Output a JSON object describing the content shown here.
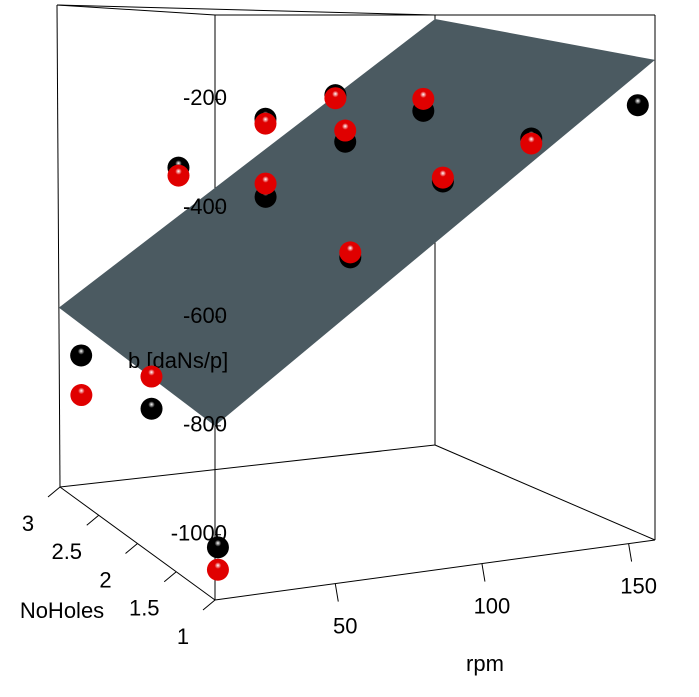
{
  "chart_data": {
    "type": "scatter3d",
    "xlabel": "rpm",
    "ylabel": "NoHoles",
    "zlabel": "b [daNs/p]",
    "xlim": [
      9,
      159
    ],
    "ylim": [
      1,
      3
    ],
    "zlim": [
      -1120,
      -45
    ],
    "xticks": [
      50,
      100,
      150
    ],
    "yticks": [
      1,
      1.5,
      2,
      2.5,
      3
    ],
    "zticks": [
      -200,
      -400,
      -600,
      -800,
      -1000
    ],
    "x": [
      10,
      10,
      10,
      50,
      50,
      50,
      100,
      100,
      100,
      100,
      100,
      150,
      155
    ],
    "y": [
      1,
      2.75,
      1.85,
      2.8,
      1.8,
      1.8,
      2.5,
      2.4,
      1.6,
      1.4,
      2.35,
      1.9,
      1.05
    ],
    "series": [
      {
        "color": "#000000",
        "values": [
          -1024,
          -804,
          -836,
          -403,
          -262,
          -421,
          -233,
          -335,
          -246,
          -385,
          -591,
          -319,
          -230
        ]
      },
      {
        "color": "#e00000",
        "values": [
          -1065,
          -890,
          -772,
          -421,
          -272,
          -394,
          -240,
          -310,
          -221,
          -377,
          -580,
          -330,
          null
        ]
      }
    ],
    "surface": {
      "color": "#4b5a61",
      "x": [
        9,
        159
      ],
      "y": [
        1,
        3
      ],
      "z": [
        [
          -800,
          -720
        ],
        [
          -137,
          -55
        ]
      ]
    }
  }
}
